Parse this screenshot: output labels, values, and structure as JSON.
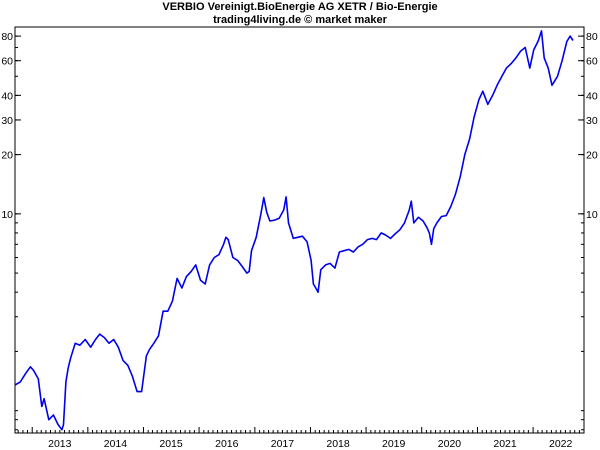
{
  "chart_data": {
    "type": "line",
    "title": "VERBIO Vereinigt.BioEnergie AG XETR / Bio-Energie",
    "subtitle": "trading4living.de © market maker",
    "xlabel": "",
    "ylabel": "",
    "y_scale": "log",
    "ylim": [
      0.77,
      89
    ],
    "xlim": [
      "2012-09-10",
      "2022-12-01"
    ],
    "grid": false,
    "y_ticks": [
      10,
      20,
      30,
      40,
      60,
      80
    ],
    "x_ticks": [
      "2013",
      "2014",
      "2015",
      "2016",
      "2017",
      "2018",
      "2019",
      "2020",
      "2021",
      "2022"
    ],
    "line_color": "#0000ee",
    "series": [
      {
        "values": [
          [
            "2012-09-10",
            1.35
          ],
          [
            "2012-10-15",
            1.4
          ],
          [
            "2012-11-20",
            1.55
          ],
          [
            "2012-12-20",
            1.67
          ],
          [
            "2013-01-10",
            1.6
          ],
          [
            "2013-02-10",
            1.45
          ],
          [
            "2013-03-05",
            1.05
          ],
          [
            "2013-03-20",
            1.15
          ],
          [
            "2013-04-20",
            0.9
          ],
          [
            "2013-05-20",
            0.95
          ],
          [
            "2013-06-20",
            0.85
          ],
          [
            "2013-07-15",
            0.8
          ],
          [
            "2013-07-25",
            0.85
          ],
          [
            "2013-08-10",
            1.4
          ],
          [
            "2013-08-25",
            1.65
          ],
          [
            "2013-09-10",
            1.85
          ],
          [
            "2013-10-10",
            2.2
          ],
          [
            "2013-11-10",
            2.15
          ],
          [
            "2013-12-15",
            2.3
          ],
          [
            "2014-01-20",
            2.1
          ],
          [
            "2014-02-20",
            2.3
          ],
          [
            "2014-03-20",
            2.45
          ],
          [
            "2014-04-20",
            2.35
          ],
          [
            "2014-05-20",
            2.2
          ],
          [
            "2014-06-20",
            2.3
          ],
          [
            "2014-07-20",
            2.1
          ],
          [
            "2014-08-20",
            1.8
          ],
          [
            "2014-09-20",
            1.7
          ],
          [
            "2014-10-20",
            1.5
          ],
          [
            "2014-11-20",
            1.25
          ],
          [
            "2014-12-20",
            1.25
          ],
          [
            "2015-01-20",
            1.9
          ],
          [
            "2015-02-10",
            2.05
          ],
          [
            "2015-03-10",
            2.2
          ],
          [
            "2015-04-10",
            2.4
          ],
          [
            "2015-05-10",
            3.2
          ],
          [
            "2015-06-10",
            3.2
          ],
          [
            "2015-07-10",
            3.6
          ],
          [
            "2015-08-10",
            4.7
          ],
          [
            "2015-09-10",
            4.2
          ],
          [
            "2015-10-10",
            4.8
          ],
          [
            "2015-11-10",
            5.1
          ],
          [
            "2015-12-10",
            5.5
          ],
          [
            "2016-01-10",
            4.6
          ],
          [
            "2016-02-10",
            4.4
          ],
          [
            "2016-03-10",
            5.5
          ],
          [
            "2016-04-10",
            6.0
          ],
          [
            "2016-05-10",
            6.2
          ],
          [
            "2016-06-10",
            7.0
          ],
          [
            "2016-06-25",
            7.6
          ],
          [
            "2016-07-10",
            7.4
          ],
          [
            "2016-08-10",
            6.0
          ],
          [
            "2016-09-10",
            5.8
          ],
          [
            "2016-10-10",
            5.4
          ],
          [
            "2016-11-10",
            5.0
          ],
          [
            "2016-11-25",
            5.1
          ],
          [
            "2016-12-10",
            6.5
          ],
          [
            "2017-01-10",
            7.6
          ],
          [
            "2017-02-10",
            10.0
          ],
          [
            "2017-03-01",
            12.1
          ],
          [
            "2017-03-20",
            10.2
          ],
          [
            "2017-04-10",
            9.2
          ],
          [
            "2017-05-10",
            9.3
          ],
          [
            "2017-06-10",
            9.5
          ],
          [
            "2017-07-10",
            10.5
          ],
          [
            "2017-07-25",
            12.2
          ],
          [
            "2017-08-10",
            9.0
          ],
          [
            "2017-09-10",
            7.5
          ],
          [
            "2017-10-10",
            7.6
          ],
          [
            "2017-11-10",
            7.7
          ],
          [
            "2017-12-10",
            7.2
          ],
          [
            "2018-01-05",
            5.8
          ],
          [
            "2018-01-20",
            4.4
          ],
          [
            "2018-02-05",
            4.2
          ],
          [
            "2018-02-20",
            4.0
          ],
          [
            "2018-03-10",
            5.2
          ],
          [
            "2018-04-10",
            5.5
          ],
          [
            "2018-05-10",
            5.6
          ],
          [
            "2018-06-10",
            5.3
          ],
          [
            "2018-07-10",
            6.4
          ],
          [
            "2018-08-10",
            6.5
          ],
          [
            "2018-09-10",
            6.6
          ],
          [
            "2018-10-10",
            6.4
          ],
          [
            "2018-11-10",
            6.8
          ],
          [
            "2018-12-10",
            7.0
          ],
          [
            "2019-01-10",
            7.4
          ],
          [
            "2019-02-10",
            7.5
          ],
          [
            "2019-03-10",
            7.4
          ],
          [
            "2019-04-10",
            8.0
          ],
          [
            "2019-05-10",
            7.8
          ],
          [
            "2019-06-10",
            7.5
          ],
          [
            "2019-07-10",
            7.9
          ],
          [
            "2019-08-10",
            8.3
          ],
          [
            "2019-09-10",
            9.0
          ],
          [
            "2019-10-10",
            10.4
          ],
          [
            "2019-10-25",
            11.6
          ],
          [
            "2019-11-10",
            9.0
          ],
          [
            "2019-12-10",
            9.6
          ],
          [
            "2020-01-10",
            9.2
          ],
          [
            "2020-02-05",
            8.5
          ],
          [
            "2020-02-20",
            8.0
          ],
          [
            "2020-03-05",
            7.0
          ],
          [
            "2020-03-20",
            8.4
          ],
          [
            "2020-04-10",
            9.0
          ],
          [
            "2020-05-10",
            9.7
          ],
          [
            "2020-06-10",
            9.8
          ],
          [
            "2020-07-10",
            10.9
          ],
          [
            "2020-08-10",
            12.6
          ],
          [
            "2020-09-10",
            15.5
          ],
          [
            "2020-10-10",
            20.0
          ],
          [
            "2020-11-10",
            24.0
          ],
          [
            "2020-12-10",
            31.0
          ],
          [
            "2021-01-10",
            38.0
          ],
          [
            "2021-02-05",
            42.0
          ],
          [
            "2021-03-10",
            36.0
          ],
          [
            "2021-04-10",
            40.0
          ],
          [
            "2021-05-10",
            45.0
          ],
          [
            "2021-06-10",
            50.0
          ],
          [
            "2021-07-10",
            55.0
          ],
          [
            "2021-08-10",
            58.0
          ],
          [
            "2021-09-10",
            62.0
          ],
          [
            "2021-10-10",
            67.0
          ],
          [
            "2021-11-10",
            70.0
          ],
          [
            "2021-12-10",
            55.0
          ],
          [
            "2022-01-05",
            68.0
          ],
          [
            "2022-02-05",
            76.0
          ],
          [
            "2022-02-25",
            85.0
          ],
          [
            "2022-03-15",
            62.0
          ],
          [
            "2022-04-10",
            55.0
          ],
          [
            "2022-05-05",
            45.0
          ],
          [
            "2022-06-10",
            50.0
          ],
          [
            "2022-07-10",
            60.0
          ],
          [
            "2022-08-10",
            75.0
          ],
          [
            "2022-09-01",
            80.0
          ],
          [
            "2022-09-20",
            76.0
          ]
        ]
      }
    ]
  }
}
